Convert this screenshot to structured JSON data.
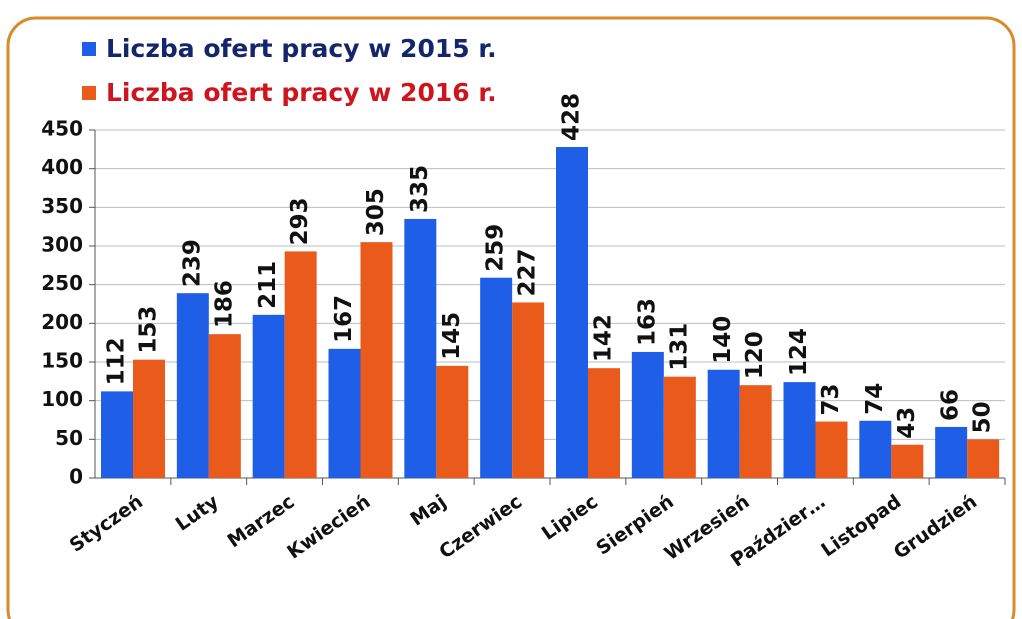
{
  "chart_data": {
    "type": "bar",
    "categories": [
      "Styczeń",
      "Luty",
      "Marzec",
      "Kwiecień",
      "Maj",
      "Czerwiec",
      "Lipiec",
      "Sierpień",
      "Wrzesień",
      "Paździer…",
      "Listopad",
      "Grudzień"
    ],
    "series": [
      {
        "name": "Liczba ofert pracy w 2015 r.",
        "color": "#1f5fe8",
        "values": [
          112,
          239,
          211,
          167,
          335,
          259,
          428,
          163,
          140,
          124,
          74,
          66
        ]
      },
      {
        "name": "Liczba ofert pracy w 2016 r.",
        "color": "#ea5a1a",
        "values": [
          153,
          186,
          293,
          305,
          145,
          227,
          142,
          131,
          120,
          73,
          43,
          50
        ]
      }
    ],
    "ylim": [
      0,
      450
    ],
    "yticks": [
      0,
      50,
      100,
      150,
      200,
      250,
      300,
      350,
      400,
      450
    ],
    "grid": true,
    "legend": "top-left"
  }
}
